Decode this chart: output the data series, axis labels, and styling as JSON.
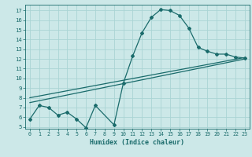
{
  "xlabel": "Humidex (Indice chaleur)",
  "background_color": "#cce8e8",
  "line_color": "#1a6b6b",
  "xlim": [
    -0.5,
    23.5
  ],
  "ylim": [
    4.8,
    17.6
  ],
  "xticks": [
    0,
    1,
    2,
    3,
    4,
    5,
    6,
    7,
    8,
    9,
    10,
    11,
    12,
    13,
    14,
    15,
    16,
    17,
    18,
    19,
    20,
    21,
    22,
    23
  ],
  "yticks": [
    5,
    6,
    7,
    8,
    9,
    10,
    11,
    12,
    13,
    14,
    15,
    16,
    17
  ],
  "main_x": [
    0,
    1,
    2,
    3,
    4,
    5,
    6,
    7,
    9,
    10,
    11,
    12,
    13,
    14,
    15,
    16,
    17,
    18,
    19,
    20,
    21,
    22,
    23
  ],
  "main_y": [
    5.8,
    7.2,
    7.0,
    6.2,
    6.5,
    5.8,
    4.9,
    7.2,
    5.2,
    9.5,
    12.3,
    14.7,
    16.3,
    17.1,
    17.0,
    16.5,
    15.2,
    13.2,
    12.8,
    12.5,
    12.5,
    12.2,
    12.1
  ],
  "trend1_x": [
    0,
    23
  ],
  "trend1_y": [
    7.5,
    12.0
  ],
  "trend2_x": [
    0,
    23
  ],
  "trend2_y": [
    8.0,
    12.15
  ],
  "grid_color": "#aad4d4",
  "figsize": [
    3.2,
    2.0
  ],
  "dpi": 100
}
